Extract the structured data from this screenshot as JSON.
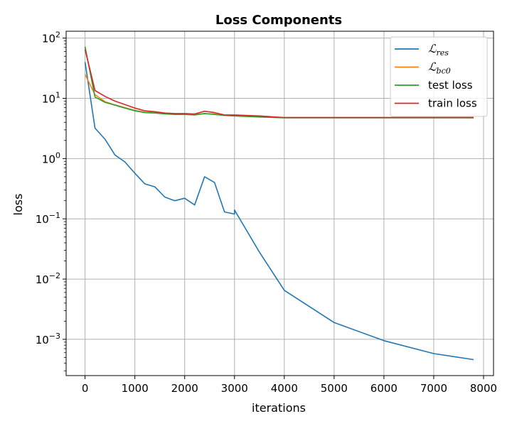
{
  "chart_data": {
    "type": "line",
    "title": "Loss Components",
    "xlabel": "iterations",
    "ylabel": "loss",
    "xlim": [
      -380,
      8200
    ],
    "ylim": [
      0.00025,
      130
    ],
    "yscale": "log",
    "grid": true,
    "legend_position": "top-right",
    "x_ticks": [
      0,
      1000,
      2000,
      3000,
      4000,
      5000,
      6000,
      7000,
      8000
    ],
    "x_tick_labels": [
      "0",
      "1000",
      "2000",
      "3000",
      "4000",
      "5000",
      "6000",
      "7000",
      "8000"
    ],
    "y_ticks": [
      0.001,
      0.01,
      0.1,
      1,
      10,
      100
    ],
    "y_tick_labels": [
      {
        "base": "10",
        "exp": "−3"
      },
      {
        "base": "10",
        "exp": "−2"
      },
      {
        "base": "10",
        "exp": "−1"
      },
      {
        "base": "10",
        "exp": "0"
      },
      {
        "base": "10",
        "exp": "1"
      },
      {
        "base": "10",
        "exp": "2"
      }
    ],
    "series": [
      {
        "name": "ℒres",
        "label_main": "ℒ",
        "label_sub": "res",
        "color": "#1f77b4",
        "x": [
          0,
          200,
          400,
          600,
          800,
          1000,
          1200,
          1400,
          1600,
          1800,
          2000,
          2200,
          2400,
          2600,
          2800,
          3000,
          3000,
          3500,
          4000,
          5000,
          6000,
          7000,
          7800
        ],
        "y": [
          40,
          3.2,
          2.1,
          1.15,
          0.88,
          0.57,
          0.38,
          0.34,
          0.23,
          0.2,
          0.22,
          0.17,
          0.5,
          0.4,
          0.13,
          0.12,
          0.14,
          0.028,
          0.0065,
          0.0019,
          0.00095,
          0.00058,
          0.00046
        ]
      },
      {
        "name": "ℒbc0",
        "label_main": "ℒ",
        "label_sub": "bc0",
        "color": "#ff7f0e",
        "x": [
          0,
          200,
          400,
          600,
          800,
          1000,
          1200,
          1400,
          1600,
          1800,
          2000,
          2200,
          2400,
          2600,
          2800,
          3000,
          3500,
          4000,
          5000,
          6000,
          7000,
          7800
        ],
        "y": [
          25,
          11.5,
          8.8,
          7.8,
          7.0,
          6.3,
          5.9,
          5.8,
          5.6,
          5.5,
          5.5,
          5.4,
          5.6,
          5.5,
          5.2,
          5.2,
          5.0,
          4.8,
          4.8,
          4.8,
          4.8,
          4.8
        ]
      },
      {
        "name": "test loss",
        "color": "#2ca02c",
        "x": [
          0,
          200,
          400,
          600,
          800,
          1000,
          1200,
          1400,
          1600,
          1800,
          2000,
          2200,
          2400,
          2600,
          2800,
          3000,
          3500,
          4000,
          5000,
          6000,
          7000,
          7800
        ],
        "y": [
          72,
          10.5,
          8.6,
          7.7,
          6.9,
          6.2,
          5.8,
          5.7,
          5.5,
          5.4,
          5.4,
          5.3,
          5.6,
          5.4,
          5.2,
          5.1,
          4.9,
          4.75,
          4.75,
          4.75,
          4.75,
          4.75
        ]
      },
      {
        "name": "train loss",
        "color": "#d62728",
        "x": [
          0,
          200,
          400,
          600,
          800,
          1000,
          1200,
          1400,
          1600,
          1800,
          2000,
          2200,
          2400,
          2600,
          2800,
          3000,
          3500,
          4000,
          5000,
          6000,
          7000,
          7800
        ],
        "y": [
          65,
          13.5,
          10.8,
          9.0,
          7.9,
          6.9,
          6.2,
          6.0,
          5.7,
          5.6,
          5.6,
          5.5,
          6.1,
          5.8,
          5.3,
          5.3,
          5.1,
          4.8,
          4.8,
          4.8,
          4.8,
          4.8
        ]
      }
    ]
  }
}
